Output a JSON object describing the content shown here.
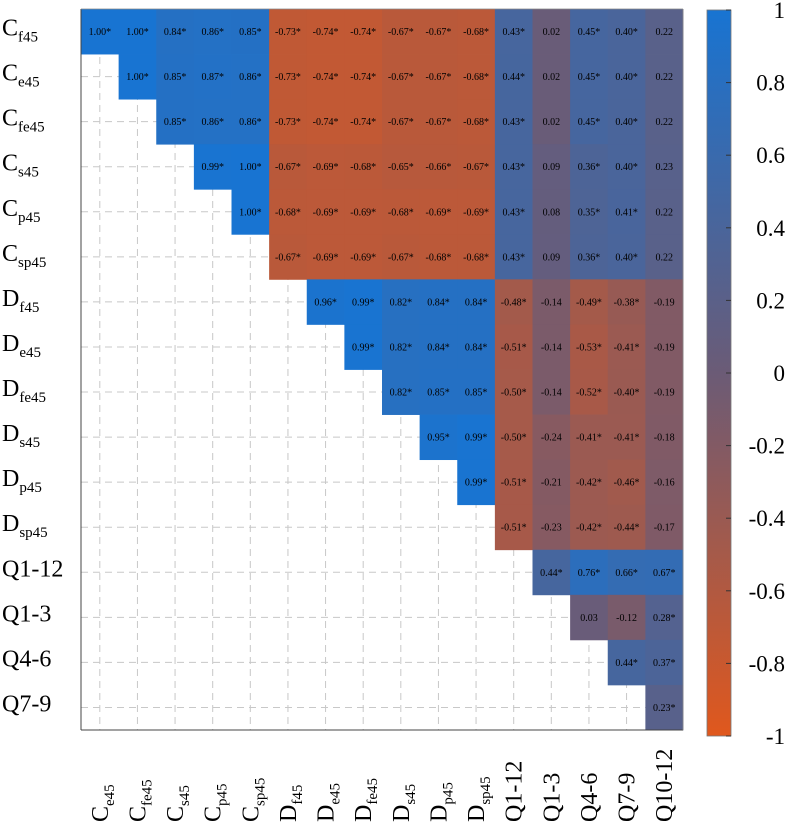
{
  "chart_data": {
    "type": "heatmap",
    "layout": "upper-triangle",
    "significance_marker": "*",
    "row_labels": [
      {
        "base": "C",
        "sub": "f45"
      },
      {
        "base": "C",
        "sub": "e45"
      },
      {
        "base": "C",
        "sub": "fe45"
      },
      {
        "base": "C",
        "sub": "s45"
      },
      {
        "base": "C",
        "sub": "p45"
      },
      {
        "base": "C",
        "sub": "sp45"
      },
      {
        "base": "D",
        "sub": "f45"
      },
      {
        "base": "D",
        "sub": "e45"
      },
      {
        "base": "D",
        "sub": "fe45"
      },
      {
        "base": "D",
        "sub": "s45"
      },
      {
        "base": "D",
        "sub": "p45"
      },
      {
        "base": "D",
        "sub": "sp45"
      },
      {
        "base": "Q1-12",
        "sub": ""
      },
      {
        "base": "Q1-3",
        "sub": ""
      },
      {
        "base": "Q4-6",
        "sub": ""
      },
      {
        "base": "Q7-9",
        "sub": ""
      }
    ],
    "column_labels": [
      {
        "base": "C",
        "sub": "e45"
      },
      {
        "base": "C",
        "sub": "fe45"
      },
      {
        "base": "C",
        "sub": "s45"
      },
      {
        "base": "C",
        "sub": "p45"
      },
      {
        "base": "C",
        "sub": "sp45"
      },
      {
        "base": "D",
        "sub": "f45"
      },
      {
        "base": "D",
        "sub": "e45"
      },
      {
        "base": "D",
        "sub": "fe45"
      },
      {
        "base": "D",
        "sub": "s45"
      },
      {
        "base": "D",
        "sub": "p45"
      },
      {
        "base": "D",
        "sub": "sp45"
      },
      {
        "base": "Q1-12",
        "sub": ""
      },
      {
        "base": "Q1-3",
        "sub": ""
      },
      {
        "base": "Q4-6",
        "sub": ""
      },
      {
        "base": "Q7-9",
        "sub": ""
      },
      {
        "base": "Q10-12",
        "sub": ""
      }
    ],
    "cells": [
      [
        {
          "v": 1.0,
          "s": true
        },
        {
          "v": 1.0,
          "s": true
        },
        {
          "v": 0.84,
          "s": true
        },
        {
          "v": 0.86,
          "s": true
        },
        {
          "v": 0.85,
          "s": true
        },
        {
          "v": -0.73,
          "s": true
        },
        {
          "v": -0.74,
          "s": true
        },
        {
          "v": -0.74,
          "s": true
        },
        {
          "v": -0.67,
          "s": true
        },
        {
          "v": -0.67,
          "s": true
        },
        {
          "v": -0.68,
          "s": true
        },
        {
          "v": 0.43,
          "s": true
        },
        {
          "v": 0.02,
          "s": false
        },
        {
          "v": 0.45,
          "s": true
        },
        {
          "v": 0.4,
          "s": true
        },
        {
          "v": 0.22,
          "s": false
        }
      ],
      [
        null,
        {
          "v": 1.0,
          "s": true
        },
        {
          "v": 0.85,
          "s": true
        },
        {
          "v": 0.87,
          "s": true
        },
        {
          "v": 0.86,
          "s": true
        },
        {
          "v": -0.73,
          "s": true
        },
        {
          "v": -0.74,
          "s": true
        },
        {
          "v": -0.74,
          "s": true
        },
        {
          "v": -0.67,
          "s": true
        },
        {
          "v": -0.67,
          "s": true
        },
        {
          "v": -0.68,
          "s": true
        },
        {
          "v": 0.44,
          "s": true
        },
        {
          "v": 0.02,
          "s": false
        },
        {
          "v": 0.45,
          "s": true
        },
        {
          "v": 0.4,
          "s": true
        },
        {
          "v": 0.22,
          "s": false
        }
      ],
      [
        null,
        null,
        {
          "v": 0.85,
          "s": true
        },
        {
          "v": 0.86,
          "s": true
        },
        {
          "v": 0.86,
          "s": true
        },
        {
          "v": -0.73,
          "s": true
        },
        {
          "v": -0.74,
          "s": true
        },
        {
          "v": -0.74,
          "s": true
        },
        {
          "v": -0.67,
          "s": true
        },
        {
          "v": -0.67,
          "s": true
        },
        {
          "v": -0.68,
          "s": true
        },
        {
          "v": 0.43,
          "s": true
        },
        {
          "v": 0.02,
          "s": false
        },
        {
          "v": 0.45,
          "s": true
        },
        {
          "v": 0.4,
          "s": true
        },
        {
          "v": 0.22,
          "s": false
        }
      ],
      [
        null,
        null,
        null,
        {
          "v": 0.99,
          "s": true
        },
        {
          "v": 1.0,
          "s": true
        },
        {
          "v": -0.67,
          "s": true
        },
        {
          "v": -0.69,
          "s": true
        },
        {
          "v": -0.68,
          "s": true
        },
        {
          "v": -0.65,
          "s": true
        },
        {
          "v": -0.66,
          "s": true
        },
        {
          "v": -0.67,
          "s": true
        },
        {
          "v": 0.43,
          "s": true
        },
        {
          "v": 0.09,
          "s": false
        },
        {
          "v": 0.36,
          "s": true
        },
        {
          "v": 0.4,
          "s": true
        },
        {
          "v": 0.23,
          "s": false
        }
      ],
      [
        null,
        null,
        null,
        null,
        {
          "v": 1.0,
          "s": true
        },
        {
          "v": -0.68,
          "s": true
        },
        {
          "v": -0.69,
          "s": true
        },
        {
          "v": -0.69,
          "s": true
        },
        {
          "v": -0.68,
          "s": true
        },
        {
          "v": -0.69,
          "s": true
        },
        {
          "v": -0.69,
          "s": true
        },
        {
          "v": 0.43,
          "s": true
        },
        {
          "v": 0.08,
          "s": false
        },
        {
          "v": 0.35,
          "s": true
        },
        {
          "v": 0.41,
          "s": true
        },
        {
          "v": 0.22,
          "s": false
        }
      ],
      [
        null,
        null,
        null,
        null,
        null,
        {
          "v": -0.67,
          "s": true
        },
        {
          "v": -0.69,
          "s": true
        },
        {
          "v": -0.69,
          "s": true
        },
        {
          "v": -0.67,
          "s": true
        },
        {
          "v": -0.68,
          "s": true
        },
        {
          "v": -0.68,
          "s": true
        },
        {
          "v": 0.43,
          "s": true
        },
        {
          "v": 0.09,
          "s": false
        },
        {
          "v": 0.36,
          "s": true
        },
        {
          "v": 0.4,
          "s": true
        },
        {
          "v": 0.22,
          "s": false
        }
      ],
      [
        null,
        null,
        null,
        null,
        null,
        null,
        {
          "v": 0.96,
          "s": true
        },
        {
          "v": 0.99,
          "s": true
        },
        {
          "v": 0.82,
          "s": true
        },
        {
          "v": 0.84,
          "s": true
        },
        {
          "v": 0.84,
          "s": true
        },
        {
          "v": -0.48,
          "s": true
        },
        {
          "v": -0.14,
          "s": false
        },
        {
          "v": -0.49,
          "s": true
        },
        {
          "v": -0.38,
          "s": true
        },
        {
          "v": -0.19,
          "s": false
        }
      ],
      [
        null,
        null,
        null,
        null,
        null,
        null,
        null,
        {
          "v": 0.99,
          "s": true
        },
        {
          "v": 0.82,
          "s": true
        },
        {
          "v": 0.84,
          "s": true
        },
        {
          "v": 0.84,
          "s": true
        },
        {
          "v": -0.51,
          "s": true
        },
        {
          "v": -0.14,
          "s": false
        },
        {
          "v": -0.53,
          "s": true
        },
        {
          "v": -0.41,
          "s": true
        },
        {
          "v": -0.19,
          "s": false
        }
      ],
      [
        null,
        null,
        null,
        null,
        null,
        null,
        null,
        null,
        {
          "v": 0.82,
          "s": true
        },
        {
          "v": 0.85,
          "s": true
        },
        {
          "v": 0.85,
          "s": true
        },
        {
          "v": -0.5,
          "s": true
        },
        {
          "v": -0.14,
          "s": false
        },
        {
          "v": -0.52,
          "s": true
        },
        {
          "v": -0.4,
          "s": true
        },
        {
          "v": -0.19,
          "s": false
        }
      ],
      [
        null,
        null,
        null,
        null,
        null,
        null,
        null,
        null,
        null,
        {
          "v": 0.95,
          "s": true
        },
        {
          "v": 0.99,
          "s": true
        },
        {
          "v": -0.5,
          "s": true
        },
        {
          "v": -0.24,
          "s": false
        },
        {
          "v": -0.41,
          "s": true
        },
        {
          "v": -0.41,
          "s": true
        },
        {
          "v": -0.18,
          "s": false
        }
      ],
      [
        null,
        null,
        null,
        null,
        null,
        null,
        null,
        null,
        null,
        null,
        {
          "v": 0.99,
          "s": true
        },
        {
          "v": -0.51,
          "s": true
        },
        {
          "v": -0.21,
          "s": false
        },
        {
          "v": -0.42,
          "s": true
        },
        {
          "v": -0.46,
          "s": true
        },
        {
          "v": -0.16,
          "s": false
        }
      ],
      [
        null,
        null,
        null,
        null,
        null,
        null,
        null,
        null,
        null,
        null,
        null,
        {
          "v": -0.51,
          "s": true
        },
        {
          "v": -0.23,
          "s": false
        },
        {
          "v": -0.42,
          "s": true
        },
        {
          "v": -0.44,
          "s": true
        },
        {
          "v": -0.17,
          "s": false
        }
      ],
      [
        null,
        null,
        null,
        null,
        null,
        null,
        null,
        null,
        null,
        null,
        null,
        null,
        {
          "v": 0.44,
          "s": true
        },
        {
          "v": 0.76,
          "s": true
        },
        {
          "v": 0.66,
          "s": true
        },
        {
          "v": 0.67,
          "s": true
        }
      ],
      [
        null,
        null,
        null,
        null,
        null,
        null,
        null,
        null,
        null,
        null,
        null,
        null,
        null,
        {
          "v": 0.03,
          "s": false
        },
        {
          "v": -0.12,
          "s": false
        },
        {
          "v": 0.28,
          "s": true
        }
      ],
      [
        null,
        null,
        null,
        null,
        null,
        null,
        null,
        null,
        null,
        null,
        null,
        null,
        null,
        null,
        {
          "v": 0.44,
          "s": true
        },
        {
          "v": 0.37,
          "s": true
        }
      ],
      [
        null,
        null,
        null,
        null,
        null,
        null,
        null,
        null,
        null,
        null,
        null,
        null,
        null,
        null,
        null,
        {
          "v": 0.23,
          "s": true
        }
      ]
    ],
    "colorbar": {
      "range": [
        -1,
        1
      ],
      "ticks": [
        1,
        0.8,
        0.6,
        0.4,
        0.2,
        0,
        -0.2,
        -0.4,
        -0.6,
        -0.8,
        -1
      ],
      "tick_labels": [
        "1",
        "0.8",
        "0.6",
        "0.4",
        "0.2",
        "0",
        "-0.2",
        "-0.4",
        "-0.6",
        "-0.8",
        "-1"
      ],
      "high_color": "#1874d2",
      "mid_color": "#6b5b76",
      "low_color": "#e0581d"
    },
    "grid": true,
    "grid_color": "#c8c8c8"
  }
}
